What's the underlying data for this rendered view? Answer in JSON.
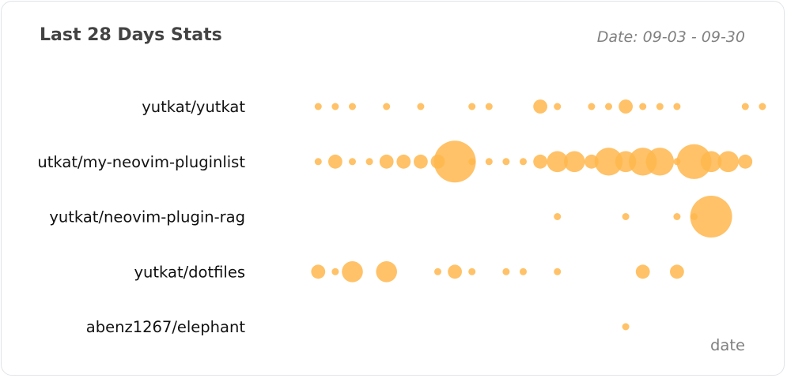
{
  "header": {
    "title": "Last 28 Days Stats",
    "subtitle": "Date: 09-03 - 09-30"
  },
  "colors": {
    "dot": "#ffb74d",
    "title": "#434343",
    "muted": "#808080",
    "border": "#e1e4e8"
  },
  "chart_data": {
    "type": "scatter",
    "title": "Last 28 Days Stats",
    "subtitle": "Date: 09-03 - 09-30",
    "xlabel": "date",
    "ylabel": "",
    "grid": false,
    "categories": [
      "yutkat/yutkat",
      "yutkat/my-neovim-pluginlist",
      "yutkat/neovim-plugin-rag",
      "yutkat/dotfiles",
      "abenz1267/elephant"
    ],
    "series": [
      {
        "repo": "yutkat/yutkat",
        "points": [
          [
            3,
            1
          ],
          [
            4,
            1
          ],
          [
            5,
            1
          ],
          [
            7,
            1
          ],
          [
            9,
            1
          ],
          [
            12,
            1
          ],
          [
            13,
            1
          ],
          [
            16,
            2
          ],
          [
            17,
            1
          ],
          [
            19,
            1
          ],
          [
            20,
            1
          ],
          [
            21,
            2
          ],
          [
            22,
            1
          ],
          [
            23,
            1
          ],
          [
            24,
            1
          ],
          [
            28,
            1
          ],
          [
            29,
            1
          ]
        ]
      },
      {
        "repo": "yutkat/my-neovim-pluginlist",
        "points": [
          [
            3,
            1
          ],
          [
            4,
            2
          ],
          [
            5,
            1
          ],
          [
            6,
            1
          ],
          [
            7,
            2
          ],
          [
            8,
            2
          ],
          [
            9,
            2
          ],
          [
            10,
            2
          ],
          [
            11,
            6
          ],
          [
            12,
            1
          ],
          [
            13,
            1
          ],
          [
            14,
            1
          ],
          [
            15,
            1
          ],
          [
            16,
            2
          ],
          [
            17,
            3
          ],
          [
            18,
            3
          ],
          [
            19,
            2
          ],
          [
            20,
            4
          ],
          [
            21,
            3
          ],
          [
            22,
            4
          ],
          [
            23,
            4
          ],
          [
            24,
            1
          ],
          [
            25,
            5
          ],
          [
            26,
            3
          ],
          [
            27,
            3
          ],
          [
            28,
            2
          ]
        ]
      },
      {
        "repo": "yutkat/neovim-plugin-rag",
        "points": [
          [
            17,
            1
          ],
          [
            21,
            1
          ],
          [
            24,
            1
          ],
          [
            25,
            1
          ],
          [
            26,
            6
          ]
        ]
      },
      {
        "repo": "yutkat/dotfiles",
        "points": [
          [
            3,
            2
          ],
          [
            4,
            1
          ],
          [
            5,
            3
          ],
          [
            7,
            3
          ],
          [
            10,
            1
          ],
          [
            11,
            2
          ],
          [
            12,
            1
          ],
          [
            14,
            1
          ],
          [
            15,
            1
          ],
          [
            17,
            1
          ],
          [
            22,
            2
          ],
          [
            24,
            2
          ]
        ]
      },
      {
        "repo": "abenz1267/elephant",
        "points": [
          [
            21,
            1
          ]
        ]
      }
    ]
  }
}
